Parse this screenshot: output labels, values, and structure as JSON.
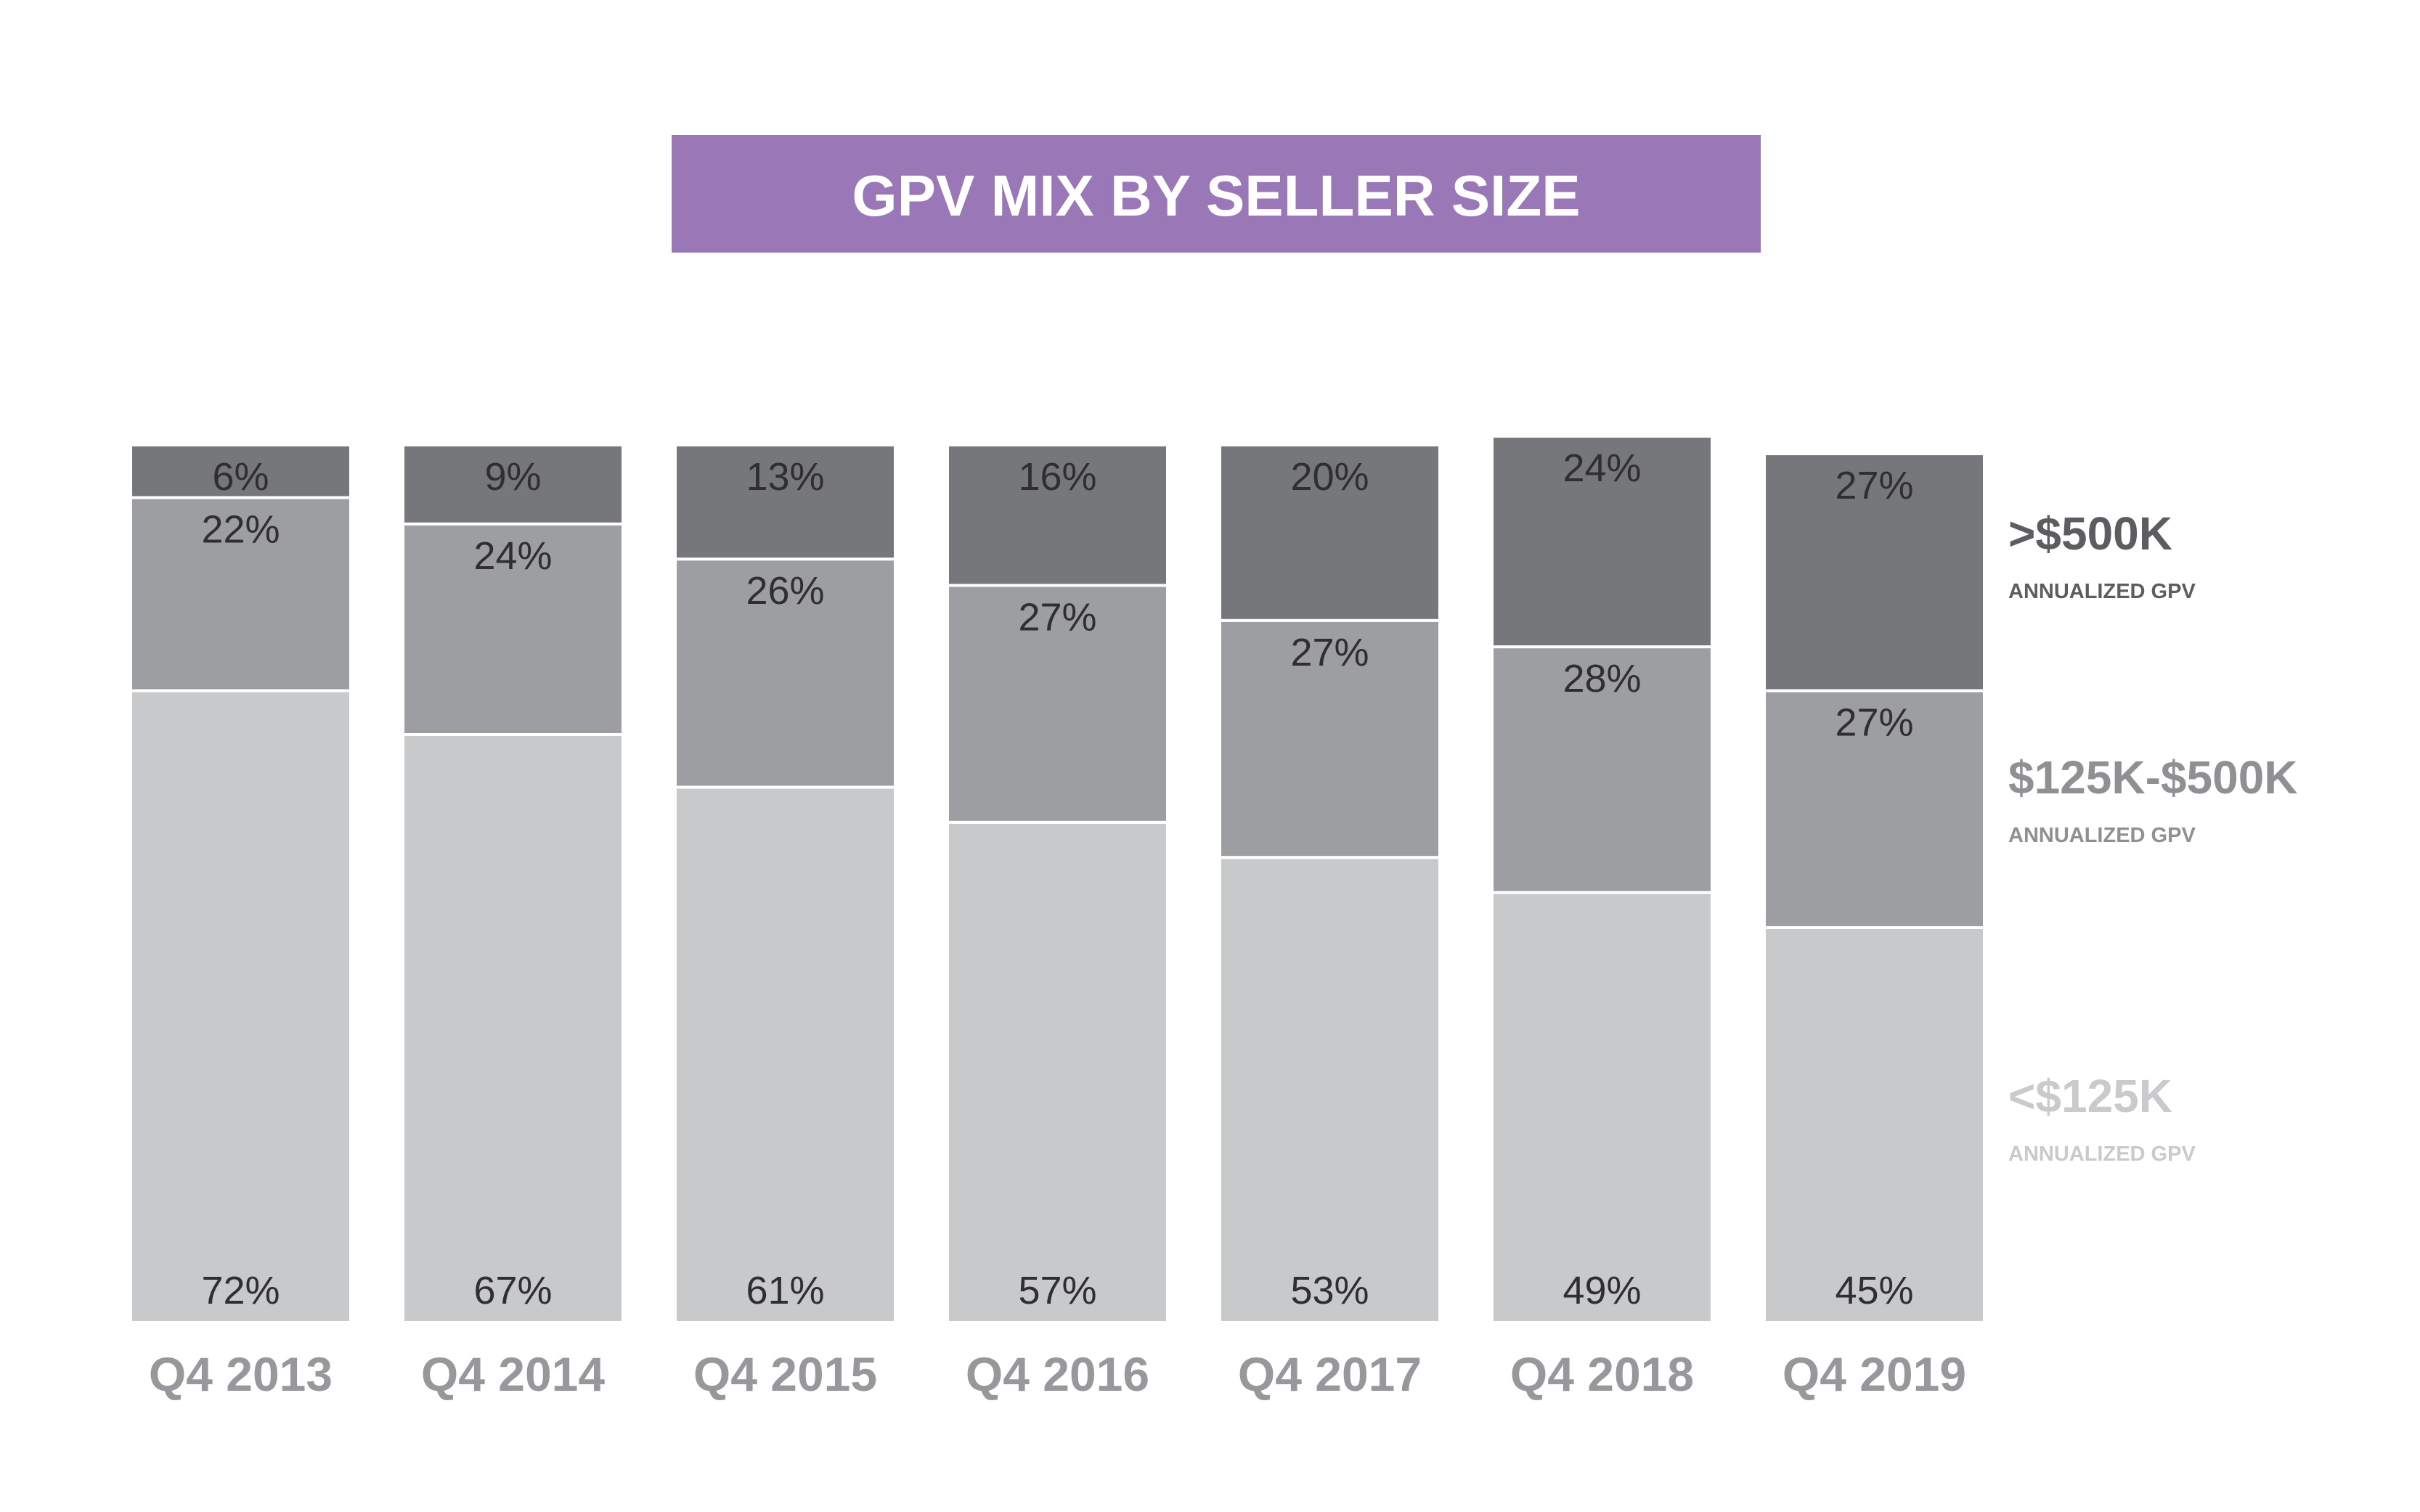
{
  "chart_data": {
    "type": "bar",
    "stacked": true,
    "title": "GPV MIX BY SELLER SIZE",
    "categories": [
      "Q4 2013",
      "Q4 2014",
      "Q4 2015",
      "Q4 2016",
      "Q4 2017",
      "Q4 2018",
      "Q4 2019"
    ],
    "series": [
      {
        "name": "<$125K",
        "sublabel": "ANNUALIZED GPV",
        "color": "#c8c9cb",
        "legend_color": "#c9cacc",
        "values": [
          72,
          67,
          61,
          57,
          53,
          49,
          45
        ],
        "labels": [
          "72%",
          "67%",
          "61%",
          "57%",
          "53%",
          "49%",
          "45%"
        ]
      },
      {
        "name": "$125K-$500K",
        "sublabel": "ANNUALIZED GPV",
        "color": "#9d9ea2",
        "legend_color": "#8f9094",
        "values": [
          22,
          24,
          26,
          27,
          27,
          28,
          27
        ],
        "labels": [
          "22%",
          "24%",
          "26%",
          "27%",
          "27%",
          "28%",
          "27%"
        ]
      },
      {
        "name": ">$500K",
        "sublabel": "ANNUALIZED GPV",
        "color": "#76777b",
        "legend_color": "#5c5d61",
        "values": [
          6,
          9,
          13,
          16,
          20,
          24,
          27
        ],
        "labels": [
          "6%",
          "9%",
          "13%",
          "16%",
          "20%",
          "24%",
          "27%"
        ]
      }
    ],
    "ylim": [
      0,
      100
    ],
    "xlabel": "",
    "ylabel": "",
    "grid": false,
    "legend": "right",
    "title_bg": "#9a77b7"
  }
}
